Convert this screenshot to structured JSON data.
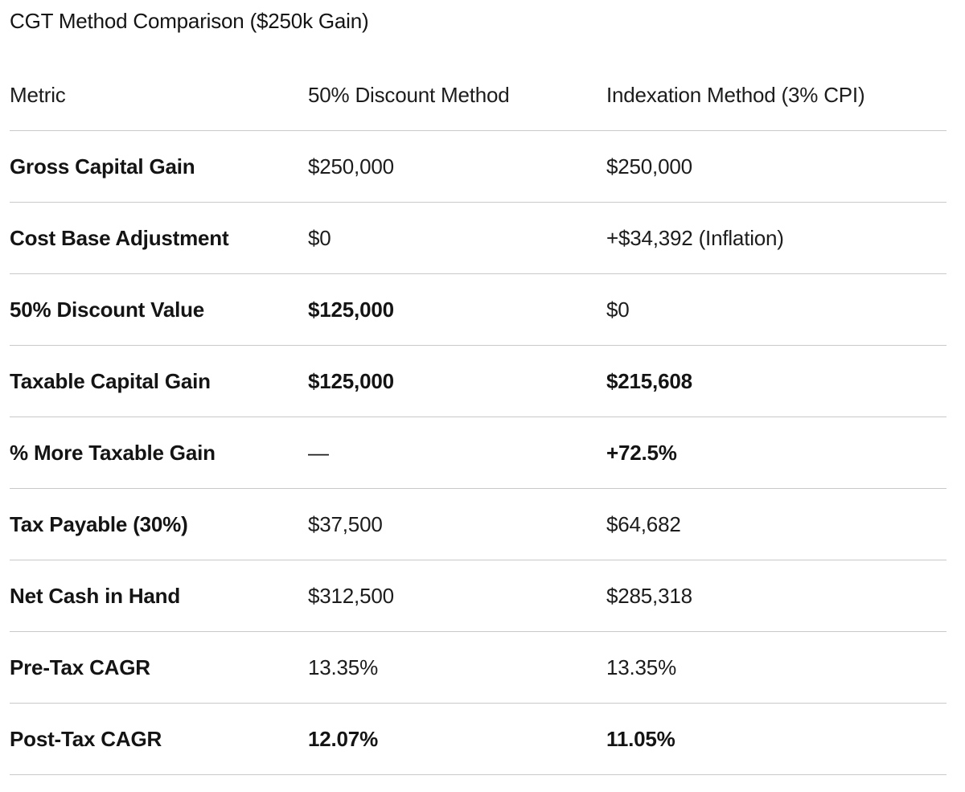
{
  "title": "CGT Method Comparison ($250k Gain)",
  "table": {
    "headers": [
      "Metric",
      "50% Discount Method",
      "Indexation Method (3% CPI)"
    ],
    "rows": [
      {
        "metric": "Gross Capital Gain",
        "discount": "$250,000",
        "indexation": "$250,000",
        "discount_bold": false,
        "indexation_bold": false
      },
      {
        "metric": "Cost Base Adjustment",
        "discount": "$0",
        "indexation": "+$34,392 (Inflation)",
        "discount_bold": false,
        "indexation_bold": false
      },
      {
        "metric": "50% Discount Value",
        "discount": "$125,000",
        "indexation": "$0",
        "discount_bold": true,
        "indexation_bold": false
      },
      {
        "metric": "Taxable Capital Gain",
        "discount": "$125,000",
        "indexation": "$215,608",
        "discount_bold": true,
        "indexation_bold": true
      },
      {
        "metric": "% More Taxable Gain",
        "discount": "—",
        "indexation": "+72.5%",
        "discount_bold": false,
        "indexation_bold": true
      },
      {
        "metric": "Tax Payable (30%)",
        "discount": "$37,500",
        "indexation": "$64,682",
        "discount_bold": false,
        "indexation_bold": false
      },
      {
        "metric": "Net Cash in Hand",
        "discount": "$312,500",
        "indexation": "$285,318",
        "discount_bold": false,
        "indexation_bold": false
      },
      {
        "metric": "Pre-Tax CAGR",
        "discount": "13.35%",
        "indexation": "13.35%",
        "discount_bold": false,
        "indexation_bold": false
      },
      {
        "metric": "Post-Tax CAGR",
        "discount": "12.07%",
        "indexation": "11.05%",
        "discount_bold": true,
        "indexation_bold": true
      }
    ]
  }
}
